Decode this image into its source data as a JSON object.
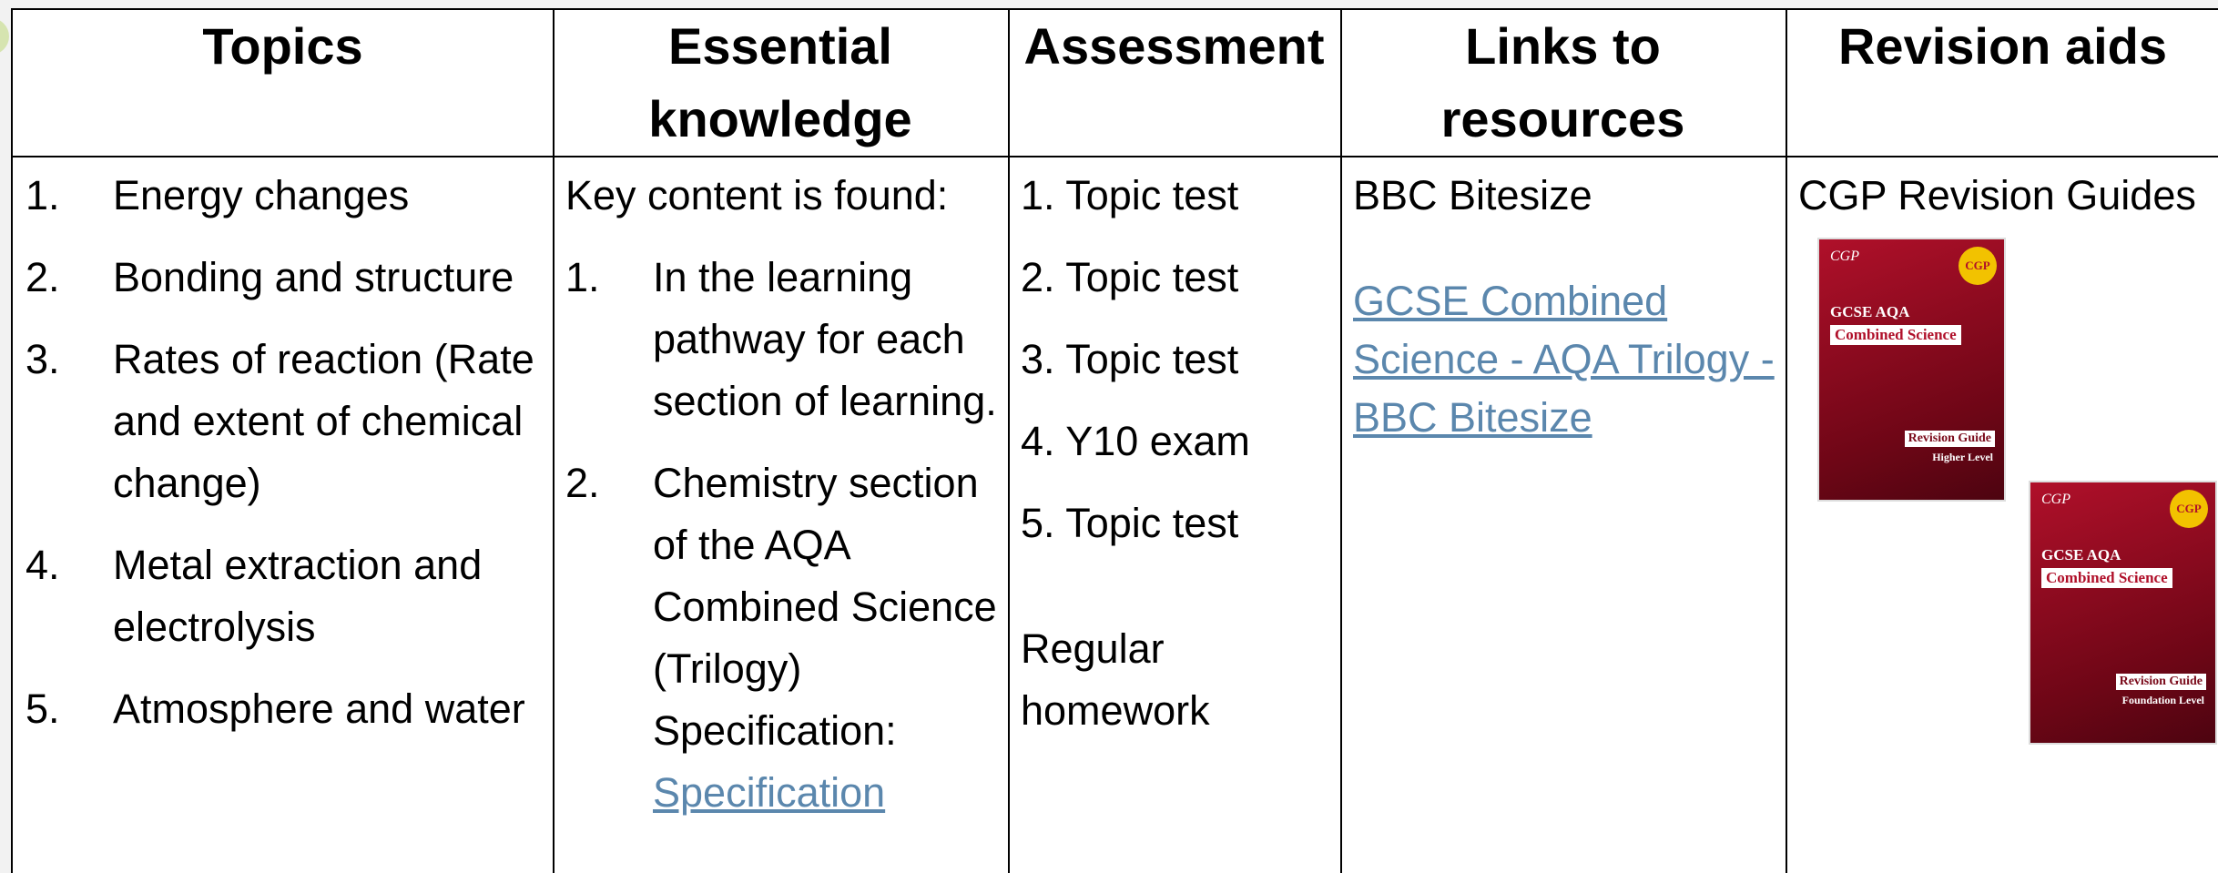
{
  "table": {
    "headers": [
      "Topics",
      "Essential knowledge",
      "Assessment",
      "Links to resources",
      "Revision aids"
    ],
    "topics": [
      {
        "number": "1.",
        "text": "Energy changes"
      },
      {
        "number": "2.",
        "text": "Bonding and structure"
      },
      {
        "number": "3.",
        "text": "Rates of reaction (Rate and extent of chemical change)"
      },
      {
        "number": "4.",
        "text": "Metal extraction and electrolysis"
      },
      {
        "number": "5.",
        "text": "Atmosphere and water"
      }
    ],
    "essential_knowledge": {
      "intro": "Key content is found:",
      "items": [
        {
          "number": "1.",
          "text": "In the learning pathway for each section of learning."
        },
        {
          "number": "2.",
          "text": "Chemistry section of the AQA Combined Science (Trilogy) Specification:",
          "link": "Specification"
        }
      ]
    },
    "assessment": {
      "items": [
        "1. Topic test",
        "2. Topic test",
        "3. Topic test",
        "4. Y10 exam",
        "5. Topic test"
      ],
      "extra": "Regular homework"
    },
    "links": {
      "heading": "BBC Bitesize",
      "link": "GCSE Combined Science - AQA Trilogy - BBC Bitesize"
    },
    "revision_aids": {
      "heading": "CGP Revision Guides",
      "books": [
        {
          "brand": "CGP",
          "exam": "GCSE AQA",
          "subject": "Combined Science",
          "guide": "Revision Guide",
          "level": "Higher Level"
        },
        {
          "brand": "CGP",
          "exam": "GCSE AQA",
          "subject": "Combined Science",
          "guide": "Revision Guide",
          "level": "Foundation Level"
        }
      ]
    }
  }
}
